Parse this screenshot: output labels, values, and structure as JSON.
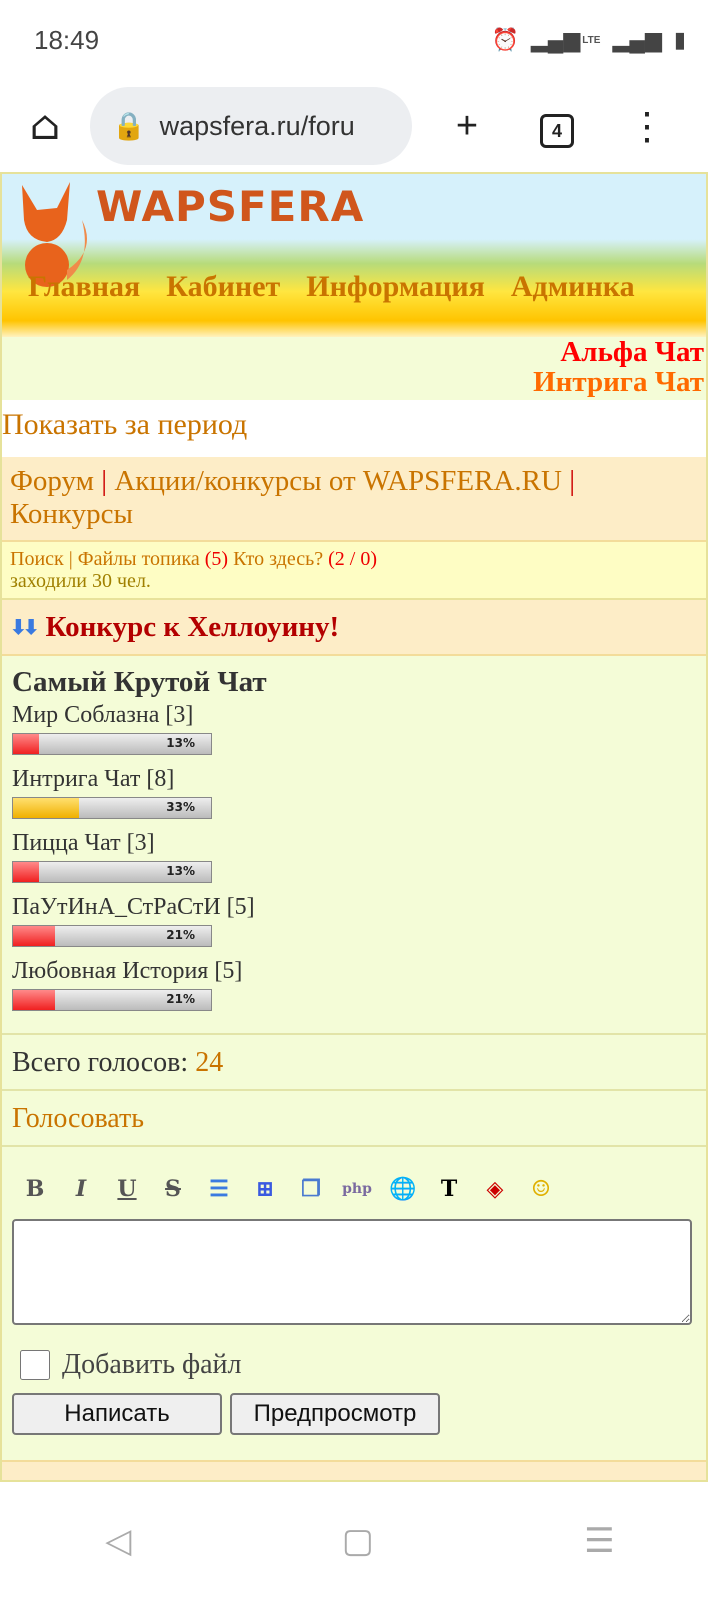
{
  "status": {
    "time": "18:49",
    "network": "LTE"
  },
  "browser": {
    "url": "wapsfera.ru/foru",
    "tab_count": "4"
  },
  "site": {
    "logo": "WAPSFERA",
    "nav": [
      "Главная",
      "Кабинет",
      "Информация",
      "Админка"
    ]
  },
  "chats": {
    "alfa": "Альфа Чат",
    "intriga": "Интрига Чат",
    "colors": {
      "alfa": "#ff0000",
      "intriga": "#ff6a00"
    }
  },
  "period_link": "Показать за период",
  "breadcrumb": {
    "forum": "Форум",
    "section": "Акции/конкурсы от WAPSFERA.RU",
    "sub": "Конкурсы",
    "sep": "|"
  },
  "info": {
    "search": "Поиск",
    "files": "Файлы топика",
    "files_count": "(5)",
    "who": "Кто здесь?",
    "who_count": "(2 / 0)",
    "visited": "заходили 30 чел."
  },
  "topic_title": "Конкурс к Хеллоуину!",
  "poll": {
    "question": "Самый Крутой Чат",
    "options": [
      {
        "label": "Мир Соблазна [3]",
        "percent": 13,
        "pct_label": "13%",
        "color": "red"
      },
      {
        "label": "Интрига Чат [8]",
        "percent": 33,
        "pct_label": "33%",
        "color": "yellow"
      },
      {
        "label": "Пицца Чат [3]",
        "percent": 13,
        "pct_label": "13%",
        "color": "red"
      },
      {
        "label": "ПаУтИнА_СтРаСтИ [5]",
        "percent": 21,
        "pct_label": "21%",
        "color": "red"
      },
      {
        "label": "Любовная История [5]",
        "percent": 21,
        "pct_label": "21%",
        "color": "red"
      }
    ]
  },
  "total": {
    "label": "Всего голосов:",
    "value": "24"
  },
  "vote_link": "Голосовать",
  "toolbar": {
    "bold": "B",
    "italic": "I",
    "underline": "U",
    "strike": "S"
  },
  "form": {
    "attach_label": "Добавить файл",
    "submit": "Написать",
    "preview": "Предпросмотр"
  }
}
